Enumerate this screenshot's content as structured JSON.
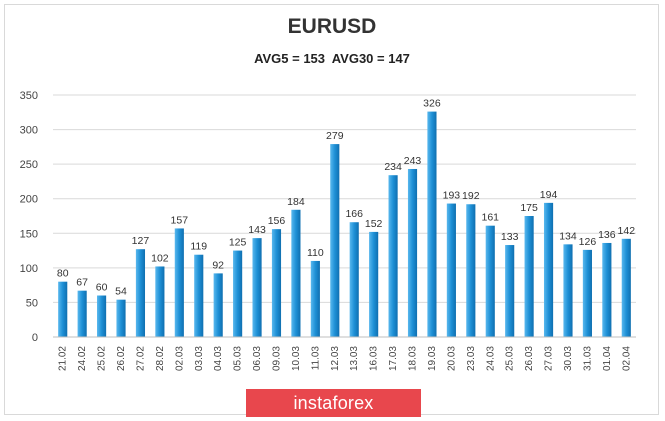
{
  "chart_data": {
    "type": "bar",
    "title": "EURUSD",
    "subtitle": "AVG5 = 153  AVG30 = 147",
    "xlabel": "",
    "ylabel": "",
    "ylim": [
      0,
      350
    ],
    "yticks": [
      0,
      50,
      100,
      150,
      200,
      250,
      300,
      350
    ],
    "grid": true,
    "bar_color": "#1e90d6",
    "categories": [
      "21.02",
      "24.02",
      "25.02",
      "26.02",
      "27.02",
      "28.02",
      "02.03",
      "03.03",
      "04.03",
      "05.03",
      "06.03",
      "09.03",
      "10.03",
      "11.03",
      "12.03",
      "13.03",
      "16.03",
      "17.03",
      "18.03",
      "19.03",
      "20.03",
      "23.03",
      "24.03",
      "25.03",
      "26.03",
      "27.03",
      "30.03",
      "31.03",
      "01.04",
      "02.04"
    ],
    "values": [
      80,
      67,
      60,
      54,
      127,
      102,
      157,
      119,
      92,
      125,
      143,
      156,
      184,
      110,
      279,
      166,
      152,
      234,
      243,
      326,
      193,
      192,
      161,
      133,
      175,
      194,
      134,
      126,
      136,
      142
    ]
  },
  "logo": {
    "text": "instaforex",
    "color": "#e8474d"
  }
}
